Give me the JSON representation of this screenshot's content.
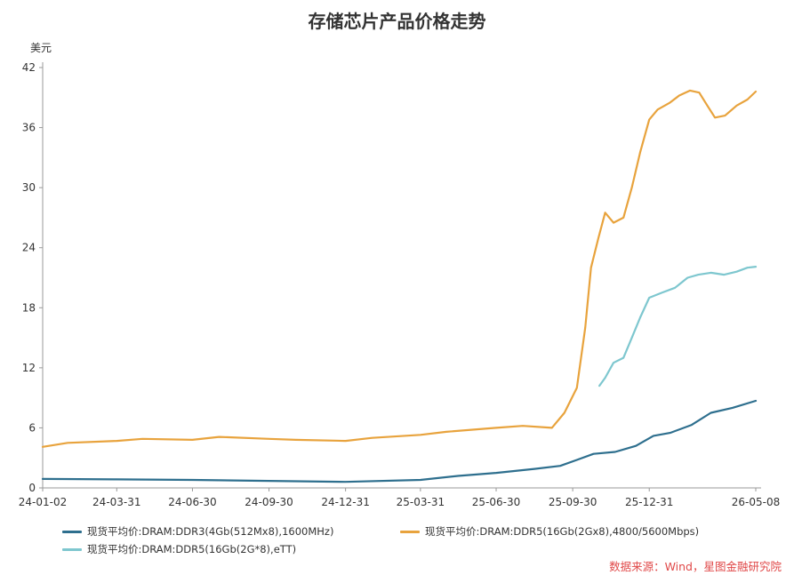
{
  "title": "存储芯片产品价格走势",
  "source": "数据来源：Wind，星图金融研究院",
  "chart_data": {
    "type": "line",
    "y_unit": "美元",
    "ylim": [
      0,
      42
    ],
    "y_ticks": [
      "0",
      "6",
      "12",
      "18",
      "24",
      "30",
      "36",
      "42"
    ],
    "x_tick_labels": [
      "24-01-02",
      "24-03-31",
      "24-06-30",
      "24-09-30",
      "24-12-31",
      "25-03-31",
      "25-06-30",
      "25-09-30",
      "25-12-31",
      "26-05-08"
    ],
    "grid": false,
    "legend_position": "bottom",
    "series": [
      {
        "name": "现货平均价:DRAM:DDR3(4Gb(512Mx8),1600MHz)",
        "color": "#2e6f8e",
        "points": [
          [
            "2024-01-02",
            0.9
          ],
          [
            "2024-03-31",
            0.85
          ],
          [
            "2024-06-30",
            0.8
          ],
          [
            "2024-09-30",
            0.7
          ],
          [
            "2024-12-31",
            0.6
          ],
          [
            "2025-03-31",
            0.8
          ],
          [
            "2025-05-15",
            1.2
          ],
          [
            "2025-06-30",
            1.5
          ],
          [
            "2025-08-15",
            1.9
          ],
          [
            "2025-09-15",
            2.2
          ],
          [
            "2025-10-05",
            2.8
          ],
          [
            "2025-10-25",
            3.4
          ],
          [
            "2025-11-20",
            3.6
          ],
          [
            "2025-12-15",
            4.2
          ],
          [
            "2026-01-05",
            5.2
          ],
          [
            "2026-01-25",
            5.5
          ],
          [
            "2026-02-20",
            6.3
          ],
          [
            "2026-03-15",
            7.5
          ],
          [
            "2026-04-10",
            8.0
          ],
          [
            "2026-05-08",
            8.7
          ]
        ]
      },
      {
        "name": "现货平均价:DRAM:DDR5(16Gb(2Gx8),4800/5600Mbps)",
        "color": "#e8a33d",
        "points": [
          [
            "2024-01-02",
            4.1
          ],
          [
            "2024-02-01",
            4.5
          ],
          [
            "2024-03-31",
            4.7
          ],
          [
            "2024-05-01",
            4.9
          ],
          [
            "2024-06-30",
            4.8
          ],
          [
            "2024-08-01",
            5.1
          ],
          [
            "2024-09-30",
            4.9
          ],
          [
            "2024-11-01",
            4.8
          ],
          [
            "2024-12-31",
            4.7
          ],
          [
            "2025-02-01",
            5.0
          ],
          [
            "2025-03-31",
            5.3
          ],
          [
            "2025-05-01",
            5.6
          ],
          [
            "2025-06-30",
            6.0
          ],
          [
            "2025-08-01",
            6.2
          ],
          [
            "2025-09-05",
            6.0
          ],
          [
            "2025-09-20",
            7.5
          ],
          [
            "2025-10-05",
            10.0
          ],
          [
            "2025-10-15",
            16.0
          ],
          [
            "2025-10-22",
            22.0
          ],
          [
            "2025-10-31",
            25.0
          ],
          [
            "2025-11-08",
            27.5
          ],
          [
            "2025-11-18",
            26.5
          ],
          [
            "2025-11-30",
            27.0
          ],
          [
            "2025-12-10",
            30.0
          ],
          [
            "2025-12-20",
            33.5
          ],
          [
            "2025-12-31",
            36.8
          ],
          [
            "2026-01-10",
            37.8
          ],
          [
            "2026-01-25",
            38.5
          ],
          [
            "2026-02-05",
            39.2
          ],
          [
            "2026-02-18",
            39.7
          ],
          [
            "2026-03-01",
            39.5
          ],
          [
            "2026-03-10",
            38.3
          ],
          [
            "2026-03-20",
            37.0
          ],
          [
            "2026-04-01",
            37.2
          ],
          [
            "2026-04-15",
            38.2
          ],
          [
            "2026-04-28",
            38.8
          ],
          [
            "2026-05-08",
            39.6
          ]
        ]
      },
      {
        "name": "现货平均价:DRAM:DDR5(16Gb(2G*8),eTT)",
        "color": "#7ec7cf",
        "points": [
          [
            "2025-11-01",
            10.2
          ],
          [
            "2025-11-08",
            11.0
          ],
          [
            "2025-11-18",
            12.5
          ],
          [
            "2025-11-30",
            13.0
          ],
          [
            "2025-12-10",
            15.0
          ],
          [
            "2025-12-20",
            17.0
          ],
          [
            "2025-12-31",
            19.0
          ],
          [
            "2026-01-15",
            19.5
          ],
          [
            "2026-01-31",
            20.0
          ],
          [
            "2026-02-15",
            21.0
          ],
          [
            "2026-02-28",
            21.3
          ],
          [
            "2026-03-15",
            21.5
          ],
          [
            "2026-03-31",
            21.3
          ],
          [
            "2026-04-15",
            21.6
          ],
          [
            "2026-04-28",
            22.0
          ],
          [
            "2026-05-08",
            22.1
          ]
        ]
      }
    ]
  }
}
